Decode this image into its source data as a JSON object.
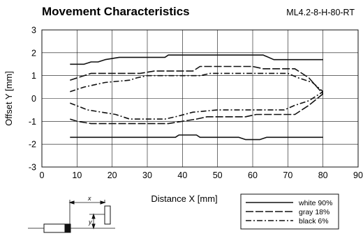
{
  "chart_data": {
    "type": "line",
    "title": "Movement Characteristics",
    "subtitle": "ML4.2-8-H-80-RT",
    "xlabel": "Distance X [mm]",
    "ylabel": "Offset Y [mm]",
    "xlim": [
      0,
      90
    ],
    "ylim": [
      -3,
      3
    ],
    "xticks": [
      0,
      10,
      20,
      30,
      40,
      50,
      60,
      70,
      80,
      90
    ],
    "yticks": [
      3,
      2,
      1,
      0,
      -1,
      -2,
      -3
    ],
    "grid": true,
    "legend_position": "bottom-right",
    "series": [
      {
        "name": "white 90%",
        "dash": "solid",
        "upper": [
          [
            8,
            1.5
          ],
          [
            12,
            1.5
          ],
          [
            14,
            1.6
          ],
          [
            16,
            1.6
          ],
          [
            18,
            1.7
          ],
          [
            22,
            1.8
          ],
          [
            35,
            1.8
          ],
          [
            36,
            1.9
          ],
          [
            63,
            1.9
          ],
          [
            66,
            1.7
          ],
          [
            80,
            1.7
          ]
        ],
        "lower": [
          [
            8,
            -1.7
          ],
          [
            38,
            -1.7
          ],
          [
            39,
            -1.6
          ],
          [
            44,
            -1.6
          ],
          [
            45,
            -1.7
          ],
          [
            56,
            -1.7
          ],
          [
            58,
            -1.8
          ],
          [
            62,
            -1.8
          ],
          [
            64,
            -1.7
          ],
          [
            80,
            -1.7
          ]
        ]
      },
      {
        "name": "gray 18%",
        "dash": "dash",
        "upper": [
          [
            8,
            0.8
          ],
          [
            12,
            1.0
          ],
          [
            14,
            1.1
          ],
          [
            28,
            1.1
          ],
          [
            32,
            1.2
          ],
          [
            43,
            1.2
          ],
          [
            45,
            1.4
          ],
          [
            60,
            1.4
          ],
          [
            63,
            1.3
          ],
          [
            72,
            1.3
          ],
          [
            76,
            0.9
          ],
          [
            80,
            0.2
          ]
        ],
        "lower": [
          [
            8,
            -0.9
          ],
          [
            10,
            -1.0
          ],
          [
            14,
            -1.1
          ],
          [
            36,
            -1.1
          ],
          [
            40,
            -1.0
          ],
          [
            44,
            -0.9
          ],
          [
            47,
            -0.8
          ],
          [
            58,
            -0.8
          ],
          [
            61,
            -0.7
          ],
          [
            72,
            -0.7
          ],
          [
            76,
            -0.3
          ],
          [
            80,
            0.2
          ]
        ]
      },
      {
        "name": "black 6%",
        "dash": "dashdot",
        "upper": [
          [
            8,
            0.3
          ],
          [
            12,
            0.5
          ],
          [
            18,
            0.7
          ],
          [
            25,
            0.8
          ],
          [
            27,
            0.9
          ],
          [
            30,
            1.0
          ],
          [
            45,
            1.0
          ],
          [
            48,
            1.1
          ],
          [
            70,
            1.1
          ],
          [
            73,
            0.9
          ],
          [
            77,
            0.7
          ],
          [
            80,
            0.3
          ]
        ],
        "lower": [
          [
            8,
            -0.2
          ],
          [
            13,
            -0.5
          ],
          [
            17,
            -0.6
          ],
          [
            21,
            -0.7
          ],
          [
            25,
            -0.9
          ],
          [
            35,
            -0.9
          ],
          [
            38,
            -0.8
          ],
          [
            43,
            -0.6
          ],
          [
            50,
            -0.5
          ],
          [
            69,
            -0.5
          ],
          [
            72,
            -0.3
          ],
          [
            76,
            -0.1
          ],
          [
            80,
            0.3
          ]
        ]
      }
    ]
  },
  "diagram": {
    "x_label": "x",
    "y_label": "y"
  }
}
